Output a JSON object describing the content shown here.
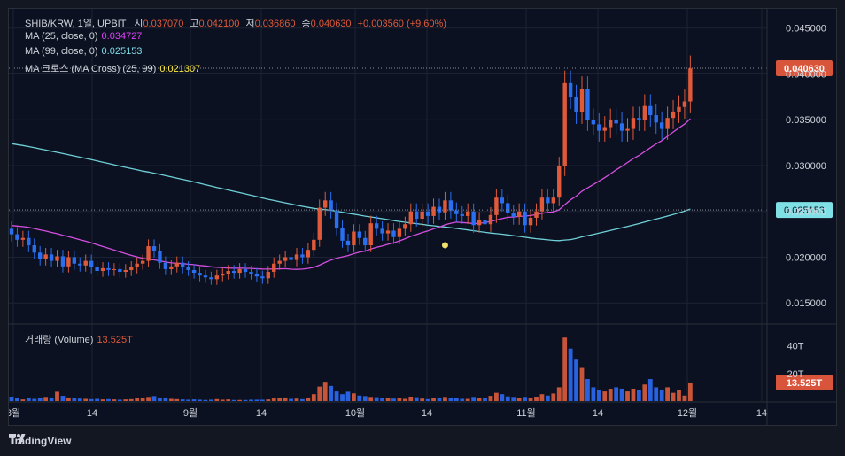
{
  "header": {
    "symbol": "SHIB/KRW, 1일, UPBIT",
    "open_label": "시",
    "open": "0.037070",
    "high_label": "고",
    "high": "0.042100",
    "low_label": "저",
    "low": "0.036860",
    "close_label": "종",
    "close": "0.040630",
    "change": "+0.003560 (+9.60%)"
  },
  "indicators": [
    {
      "label": "MA (25, close, 0)",
      "value": "0.034727",
      "color": "#e040fb"
    },
    {
      "label": "MA (99, close, 0)",
      "value": "0.025153",
      "color": "#80deea"
    },
    {
      "label": "MA 크로스 (MA Cross) (25, 99)",
      "value": "0.021307",
      "color": "#ffeb3b"
    }
  ],
  "volume_legend": {
    "label": "거래량 (Volume)",
    "value": "13.525T"
  },
  "price_tags": {
    "last": "0.040630",
    "ma99": "0.025153",
    "volume": "13.525T"
  },
  "footer": {
    "brand": "TradingView"
  },
  "colors": {
    "up": "#e05a3a",
    "down": "#2a6ff0",
    "ma25": "#d44fe0",
    "ma99": "#6fd0d8",
    "cross": "#f3e06a",
    "up_vol": "#c8553a",
    "down_vol": "#2862e0"
  },
  "chart_data": {
    "type": "candlestick",
    "title": "SHIB/KRW, 1일, UPBIT",
    "y_axis": {
      "ticks": [
        "0.045000",
        "0.040000",
        "0.035000",
        "0.030000",
        "0.025000",
        "0.020000",
        "0.015000"
      ],
      "range": [
        0.0128,
        0.0471
      ]
    },
    "volume_axis": {
      "ticks": [
        "40T",
        "20T"
      ],
      "range": [
        0,
        50
      ]
    },
    "x_axis": {
      "ticks": [
        "8월",
        "14",
        "9월",
        "14",
        "10월",
        "14",
        "11월",
        "14",
        "12월",
        "14"
      ]
    },
    "last_close": 0.04063,
    "ma25_last": 0.034727,
    "ma99_last": 0.025153,
    "cross_value": 0.021307,
    "candles": [
      {
        "o": 0.0231,
        "c": 0.0225,
        "v": 3.2
      },
      {
        "o": 0.0225,
        "c": 0.0219,
        "v": 2.0
      },
      {
        "o": 0.0219,
        "c": 0.0221,
        "v": 1.2
      },
      {
        "o": 0.0221,
        "c": 0.0213,
        "v": 2.0
      },
      {
        "o": 0.0213,
        "c": 0.0205,
        "v": 1.6
      },
      {
        "o": 0.0205,
        "c": 0.0198,
        "v": 2.4
      },
      {
        "o": 0.0198,
        "c": 0.0203,
        "v": 3.0
      },
      {
        "o": 0.0203,
        "c": 0.0196,
        "v": 2.2
      },
      {
        "o": 0.0196,
        "c": 0.0201,
        "v": 6.8
      },
      {
        "o": 0.0201,
        "c": 0.019,
        "v": 3.8
      },
      {
        "o": 0.019,
        "c": 0.02,
        "v": 2.6
      },
      {
        "o": 0.02,
        "c": 0.0193,
        "v": 2.2
      },
      {
        "o": 0.0193,
        "c": 0.0191,
        "v": 1.8
      },
      {
        "o": 0.0191,
        "c": 0.0196,
        "v": 1.6
      },
      {
        "o": 0.0196,
        "c": 0.0189,
        "v": 1.4
      },
      {
        "o": 0.0189,
        "c": 0.0185,
        "v": 1.6
      },
      {
        "o": 0.0185,
        "c": 0.0188,
        "v": 1.2
      },
      {
        "o": 0.0188,
        "c": 0.0186,
        "v": 1.4
      },
      {
        "o": 0.0186,
        "c": 0.0187,
        "v": 1.2
      },
      {
        "o": 0.0187,
        "c": 0.0184,
        "v": 1.0
      },
      {
        "o": 0.0184,
        "c": 0.0186,
        "v": 1.2
      },
      {
        "o": 0.0186,
        "c": 0.0189,
        "v": 1.4
      },
      {
        "o": 0.0189,
        "c": 0.0193,
        "v": 2.4
      },
      {
        "o": 0.0193,
        "c": 0.0196,
        "v": 2.0
      },
      {
        "o": 0.0196,
        "c": 0.0212,
        "v": 3.0
      },
      {
        "o": 0.0212,
        "c": 0.0207,
        "v": 3.6
      },
      {
        "o": 0.0207,
        "c": 0.0194,
        "v": 2.4
      },
      {
        "o": 0.0194,
        "c": 0.0187,
        "v": 2.0
      },
      {
        "o": 0.0187,
        "c": 0.019,
        "v": 1.6
      },
      {
        "o": 0.019,
        "c": 0.0194,
        "v": 1.4
      },
      {
        "o": 0.0194,
        "c": 0.0189,
        "v": 1.2
      },
      {
        "o": 0.0189,
        "c": 0.0186,
        "v": 1.0
      },
      {
        "o": 0.0186,
        "c": 0.0183,
        "v": 1.2
      },
      {
        "o": 0.0183,
        "c": 0.018,
        "v": 1.0
      },
      {
        "o": 0.018,
        "c": 0.0178,
        "v": 0.8
      },
      {
        "o": 0.0178,
        "c": 0.0176,
        "v": 1.0
      },
      {
        "o": 0.0176,
        "c": 0.018,
        "v": 1.4
      },
      {
        "o": 0.018,
        "c": 0.0182,
        "v": 1.0
      },
      {
        "o": 0.0182,
        "c": 0.0185,
        "v": 1.2
      },
      {
        "o": 0.0185,
        "c": 0.0183,
        "v": 0.8
      },
      {
        "o": 0.0183,
        "c": 0.0187,
        "v": 0.8
      },
      {
        "o": 0.0187,
        "c": 0.0184,
        "v": 0.8
      },
      {
        "o": 0.0184,
        "c": 0.0182,
        "v": 1.0
      },
      {
        "o": 0.0182,
        "c": 0.0179,
        "v": 1.0
      },
      {
        "o": 0.0179,
        "c": 0.0177,
        "v": 1.0
      },
      {
        "o": 0.0177,
        "c": 0.0184,
        "v": 1.2
      },
      {
        "o": 0.0184,
        "c": 0.0193,
        "v": 2.0
      },
      {
        "o": 0.0193,
        "c": 0.0196,
        "v": 2.4
      },
      {
        "o": 0.0196,
        "c": 0.02,
        "v": 2.6
      },
      {
        "o": 0.02,
        "c": 0.0197,
        "v": 1.6
      },
      {
        "o": 0.0197,
        "c": 0.0203,
        "v": 1.8
      },
      {
        "o": 0.0203,
        "c": 0.02,
        "v": 1.4
      },
      {
        "o": 0.02,
        "c": 0.0208,
        "v": 2.6
      },
      {
        "o": 0.0208,
        "c": 0.0219,
        "v": 5.0
      },
      {
        "o": 0.0219,
        "c": 0.0254,
        "v": 10.5
      },
      {
        "o": 0.0254,
        "c": 0.0262,
        "v": 14.0
      },
      {
        "o": 0.0262,
        "c": 0.0251,
        "v": 11.0
      },
      {
        "o": 0.0251,
        "c": 0.0232,
        "v": 7.0
      },
      {
        "o": 0.0232,
        "c": 0.0218,
        "v": 5.0
      },
      {
        "o": 0.0218,
        "c": 0.0213,
        "v": 6.8
      },
      {
        "o": 0.0213,
        "c": 0.0228,
        "v": 5.6
      },
      {
        "o": 0.0228,
        "c": 0.0221,
        "v": 4.0
      },
      {
        "o": 0.0221,
        "c": 0.0213,
        "v": 3.6
      },
      {
        "o": 0.0213,
        "c": 0.0237,
        "v": 3.0
      },
      {
        "o": 0.0237,
        "c": 0.0231,
        "v": 2.8
      },
      {
        "o": 0.0231,
        "c": 0.0226,
        "v": 2.4
      },
      {
        "o": 0.0226,
        "c": 0.0229,
        "v": 2.0
      },
      {
        "o": 0.0229,
        "c": 0.0222,
        "v": 1.8
      },
      {
        "o": 0.0222,
        "c": 0.0231,
        "v": 2.0
      },
      {
        "o": 0.0231,
        "c": 0.0236,
        "v": 1.6
      },
      {
        "o": 0.0236,
        "c": 0.025,
        "v": 3.2
      },
      {
        "o": 0.025,
        "c": 0.0242,
        "v": 2.8
      },
      {
        "o": 0.0242,
        "c": 0.025,
        "v": 1.8
      },
      {
        "o": 0.025,
        "c": 0.0245,
        "v": 1.4
      },
      {
        "o": 0.0245,
        "c": 0.0255,
        "v": 2.0
      },
      {
        "o": 0.0255,
        "c": 0.0249,
        "v": 2.2
      },
      {
        "o": 0.0249,
        "c": 0.0262,
        "v": 3.0
      },
      {
        "o": 0.0262,
        "c": 0.0251,
        "v": 2.4
      },
      {
        "o": 0.0251,
        "c": 0.0247,
        "v": 2.0
      },
      {
        "o": 0.0247,
        "c": 0.0245,
        "v": 1.6
      },
      {
        "o": 0.0245,
        "c": 0.025,
        "v": 1.6
      },
      {
        "o": 0.025,
        "c": 0.0235,
        "v": 3.0
      },
      {
        "o": 0.0235,
        "c": 0.0241,
        "v": 2.4
      },
      {
        "o": 0.0241,
        "c": 0.0236,
        "v": 2.0
      },
      {
        "o": 0.0236,
        "c": 0.0246,
        "v": 3.8
      },
      {
        "o": 0.0246,
        "c": 0.0265,
        "v": 6.0
      },
      {
        "o": 0.0265,
        "c": 0.0259,
        "v": 5.0
      },
      {
        "o": 0.0259,
        "c": 0.0248,
        "v": 3.4
      },
      {
        "o": 0.0248,
        "c": 0.0244,
        "v": 3.0
      },
      {
        "o": 0.0244,
        "c": 0.025,
        "v": 2.2
      },
      {
        "o": 0.025,
        "c": 0.0235,
        "v": 3.0
      },
      {
        "o": 0.0235,
        "c": 0.0243,
        "v": 2.4
      },
      {
        "o": 0.0243,
        "c": 0.025,
        "v": 3.2
      },
      {
        "o": 0.025,
        "c": 0.0265,
        "v": 5.0
      },
      {
        "o": 0.0265,
        "c": 0.0259,
        "v": 4.0
      },
      {
        "o": 0.0259,
        "c": 0.0265,
        "v": 5.5
      },
      {
        "o": 0.0265,
        "c": 0.0299,
        "v": 10.0
      },
      {
        "o": 0.0299,
        "c": 0.039,
        "v": 46.0
      },
      {
        "o": 0.039,
        "c": 0.0375,
        "v": 38.0
      },
      {
        "o": 0.0375,
        "c": 0.0358,
        "v": 30.0
      },
      {
        "o": 0.0358,
        "c": 0.0384,
        "v": 24.0
      },
      {
        "o": 0.0384,
        "c": 0.035,
        "v": 16.0
      },
      {
        "o": 0.035,
        "c": 0.0345,
        "v": 10.0
      },
      {
        "o": 0.0345,
        "c": 0.0338,
        "v": 8.0
      },
      {
        "o": 0.0338,
        "c": 0.0342,
        "v": 7.0
      },
      {
        "o": 0.0342,
        "c": 0.035,
        "v": 9.0
      },
      {
        "o": 0.035,
        "c": 0.0346,
        "v": 10.0
      },
      {
        "o": 0.0346,
        "c": 0.0338,
        "v": 9.0
      },
      {
        "o": 0.0338,
        "c": 0.034,
        "v": 7.0
      },
      {
        "o": 0.034,
        "c": 0.0352,
        "v": 9.0
      },
      {
        "o": 0.0352,
        "c": 0.035,
        "v": 8.0
      },
      {
        "o": 0.035,
        "c": 0.0365,
        "v": 12.0
      },
      {
        "o": 0.0365,
        "c": 0.0355,
        "v": 16.0
      },
      {
        "o": 0.0355,
        "c": 0.0347,
        "v": 10.0
      },
      {
        "o": 0.0347,
        "c": 0.034,
        "v": 8.0
      },
      {
        "o": 0.034,
        "c": 0.0352,
        "v": 10.0
      },
      {
        "o": 0.0352,
        "c": 0.0359,
        "v": 6.0
      },
      {
        "o": 0.0359,
        "c": 0.0364,
        "v": 8.0
      },
      {
        "o": 0.0364,
        "c": 0.037,
        "v": 4.0
      },
      {
        "o": 0.037,
        "c": 0.0406,
        "v": 13.5
      }
    ]
  }
}
